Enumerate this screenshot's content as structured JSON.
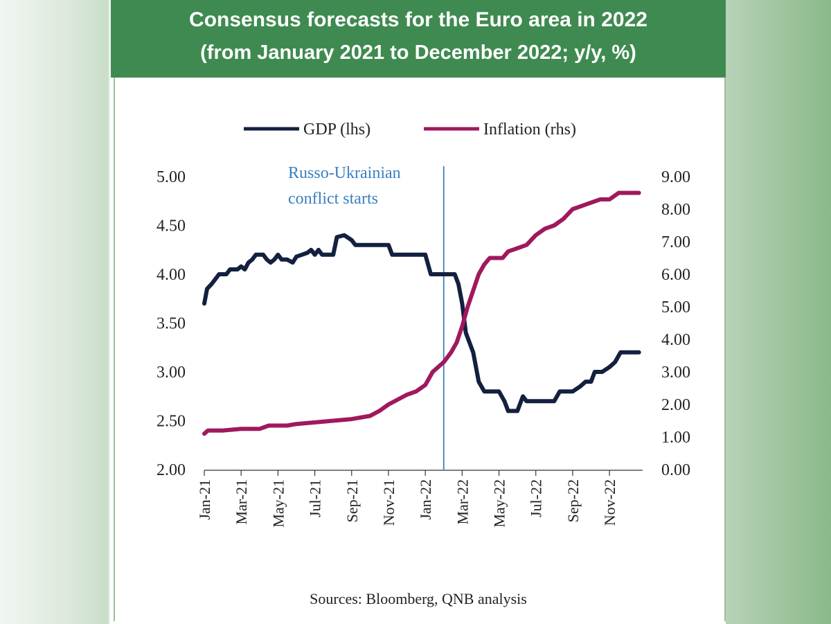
{
  "header": {
    "title": "Consensus forecasts for the Euro area in 2022",
    "subtitle": "(from January 2021 to December 2022; y/y, %)"
  },
  "source": "Sources: Bloomberg, QNB analysis",
  "colors": {
    "header_bg": "#3f8a50",
    "gdp": "#13203f",
    "inflation": "#a0185e",
    "event_line": "#3a7fc0"
  },
  "chart_data": {
    "type": "line",
    "title": "Consensus forecasts for the Euro area in 2022",
    "xlabel": "",
    "ylabel_left": "GDP (lhs)",
    "ylabel_right": "Inflation (rhs)",
    "x_unit": "months since Jan-21",
    "x_range": [
      0,
      23.8
    ],
    "ylim_left": [
      2.0,
      5.0
    ],
    "ylim_right": [
      0.0,
      9.0
    ],
    "yticks_left": [
      "2.00",
      "2.50",
      "3.00",
      "3.50",
      "4.00",
      "4.50",
      "5.00"
    ],
    "yticks_right": [
      "0.00",
      "1.00",
      "2.00",
      "3.00",
      "4.00",
      "5.00",
      "6.00",
      "7.00",
      "8.00",
      "9.00"
    ],
    "x_ticks": [
      {
        "label": "Jan-21",
        "x": 0
      },
      {
        "label": "Mar-21",
        "x": 2
      },
      {
        "label": "May-21",
        "x": 4
      },
      {
        "label": "Jul-21",
        "x": 6
      },
      {
        "label": "Sep-21",
        "x": 8
      },
      {
        "label": "Nov-21",
        "x": 10
      },
      {
        "label": "Jan-22",
        "x": 12
      },
      {
        "label": "Mar-22",
        "x": 14
      },
      {
        "label": "May-22",
        "x": 16
      },
      {
        "label": "Jul-22",
        "x": 18
      },
      {
        "label": "Sep-22",
        "x": 20
      },
      {
        "label": "Nov-22",
        "x": 22
      }
    ],
    "legend": [
      {
        "name": "GDP (lhs)",
        "key": "gdp"
      },
      {
        "name": "Inflation (rhs)",
        "key": "inflation"
      }
    ],
    "annotation": {
      "lines": [
        "Russo-Ukrainian",
        "conflict starts"
      ],
      "x": 13.0
    },
    "series": [
      {
        "name": "GDP (lhs)",
        "axis": "left",
        "points": [
          [
            0,
            3.7
          ],
          [
            0.15,
            3.85
          ],
          [
            0.4,
            3.9
          ],
          [
            0.6,
            3.95
          ],
          [
            0.8,
            4.0
          ],
          [
            1.2,
            4.0
          ],
          [
            1.4,
            4.05
          ],
          [
            1.8,
            4.05
          ],
          [
            2.0,
            4.08
          ],
          [
            2.2,
            4.05
          ],
          [
            2.4,
            4.12
          ],
          [
            2.6,
            4.15
          ],
          [
            2.8,
            4.2
          ],
          [
            3.2,
            4.2
          ],
          [
            3.4,
            4.15
          ],
          [
            3.6,
            4.12
          ],
          [
            3.8,
            4.15
          ],
          [
            4.0,
            4.2
          ],
          [
            4.2,
            4.15
          ],
          [
            4.5,
            4.15
          ],
          [
            4.8,
            4.12
          ],
          [
            5.0,
            4.18
          ],
          [
            5.3,
            4.2
          ],
          [
            5.6,
            4.22
          ],
          [
            5.8,
            4.25
          ],
          [
            6.0,
            4.2
          ],
          [
            6.2,
            4.25
          ],
          [
            6.4,
            4.2
          ],
          [
            7.0,
            4.2
          ],
          [
            7.2,
            4.38
          ],
          [
            7.6,
            4.4
          ],
          [
            8.0,
            4.35
          ],
          [
            8.2,
            4.3
          ],
          [
            9.0,
            4.3
          ],
          [
            10.0,
            4.3
          ],
          [
            10.2,
            4.2
          ],
          [
            11.0,
            4.2
          ],
          [
            12.0,
            4.2
          ],
          [
            12.3,
            4.0
          ],
          [
            13.0,
            4.0
          ],
          [
            13.6,
            4.0
          ],
          [
            13.8,
            3.9
          ],
          [
            14.0,
            3.7
          ],
          [
            14.2,
            3.4
          ],
          [
            14.6,
            3.2
          ],
          [
            14.9,
            2.9
          ],
          [
            15.2,
            2.8
          ],
          [
            16.0,
            2.8
          ],
          [
            16.3,
            2.7
          ],
          [
            16.5,
            2.6
          ],
          [
            17.0,
            2.6
          ],
          [
            17.3,
            2.75
          ],
          [
            17.5,
            2.7
          ],
          [
            18.0,
            2.7
          ],
          [
            19.0,
            2.7
          ],
          [
            19.3,
            2.8
          ],
          [
            20.0,
            2.8
          ],
          [
            20.4,
            2.85
          ],
          [
            20.7,
            2.9
          ],
          [
            21.0,
            2.9
          ],
          [
            21.2,
            3.0
          ],
          [
            21.6,
            3.0
          ],
          [
            22.0,
            3.05
          ],
          [
            22.3,
            3.1
          ],
          [
            22.6,
            3.2
          ],
          [
            23.0,
            3.2
          ],
          [
            23.6,
            3.2
          ]
        ]
      },
      {
        "name": "Inflation (rhs)",
        "axis": "right",
        "points": [
          [
            0,
            1.1
          ],
          [
            0.2,
            1.2
          ],
          [
            1.0,
            1.2
          ],
          [
            2.0,
            1.25
          ],
          [
            3.0,
            1.25
          ],
          [
            3.5,
            1.35
          ],
          [
            4.5,
            1.35
          ],
          [
            5.0,
            1.4
          ],
          [
            6.0,
            1.45
          ],
          [
            7.0,
            1.5
          ],
          [
            8.0,
            1.55
          ],
          [
            9.0,
            1.65
          ],
          [
            9.5,
            1.8
          ],
          [
            10.0,
            2.0
          ],
          [
            10.5,
            2.15
          ],
          [
            11.0,
            2.3
          ],
          [
            11.5,
            2.4
          ],
          [
            12.0,
            2.6
          ],
          [
            12.4,
            3.0
          ],
          [
            12.8,
            3.2
          ],
          [
            13.0,
            3.3
          ],
          [
            13.4,
            3.6
          ],
          [
            13.7,
            3.9
          ],
          [
            14.0,
            4.4
          ],
          [
            14.3,
            5.0
          ],
          [
            14.6,
            5.5
          ],
          [
            14.9,
            6.0
          ],
          [
            15.2,
            6.3
          ],
          [
            15.5,
            6.5
          ],
          [
            16.2,
            6.5
          ],
          [
            16.5,
            6.7
          ],
          [
            17.0,
            6.8
          ],
          [
            17.5,
            6.9
          ],
          [
            18.0,
            7.2
          ],
          [
            18.5,
            7.4
          ],
          [
            19.0,
            7.5
          ],
          [
            19.5,
            7.7
          ],
          [
            20.0,
            8.0
          ],
          [
            20.5,
            8.1
          ],
          [
            21.0,
            8.2
          ],
          [
            21.5,
            8.3
          ],
          [
            22.0,
            8.3
          ],
          [
            22.5,
            8.5
          ],
          [
            23.0,
            8.5
          ],
          [
            23.6,
            8.5
          ]
        ]
      }
    ]
  }
}
